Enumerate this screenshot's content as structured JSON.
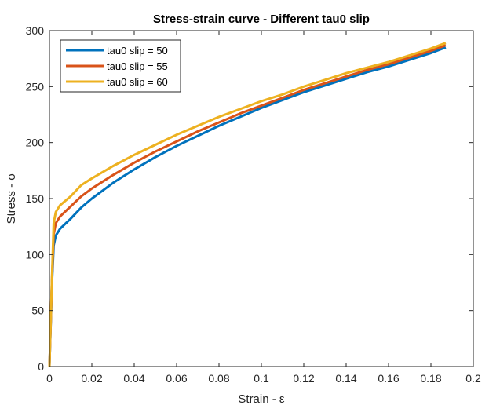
{
  "chart_data": {
    "type": "line",
    "title": "Stress-strain curve - Different tau0 slip",
    "xlabel": "Strain - ε",
    "ylabel": "Stress - σ",
    "xlim": [
      0,
      0.2
    ],
    "ylim": [
      0,
      300
    ],
    "xticks": [
      0,
      0.02,
      0.04,
      0.06,
      0.08,
      0.1,
      0.12,
      0.14,
      0.16,
      0.18,
      0.2
    ],
    "xtick_labels": [
      "0",
      "0.02",
      "0.04",
      "0.06",
      "0.08",
      "0.1",
      "0.12",
      "0.14",
      "0.16",
      "0.18",
      "0.2"
    ],
    "yticks": [
      0,
      50,
      100,
      150,
      200,
      250,
      300
    ],
    "ytick_labels": [
      "0",
      "50",
      "100",
      "150",
      "200",
      "250",
      "300"
    ],
    "grid": false,
    "legend_position": "top-left",
    "series": [
      {
        "name": "tau0 slip = 50",
        "color": "#0072BD",
        "x": [
          0,
          0.0012,
          0.002,
          0.003,
          0.005,
          0.01,
          0.015,
          0.02,
          0.03,
          0.04,
          0.05,
          0.06,
          0.07,
          0.08,
          0.09,
          0.1,
          0.11,
          0.12,
          0.13,
          0.14,
          0.15,
          0.16,
          0.17,
          0.18,
          0.187
        ],
        "y": [
          0,
          75,
          108,
          117,
          123,
          132,
          142,
          150,
          164,
          176,
          187,
          197,
          206,
          215,
          223,
          231,
          238,
          245,
          251,
          257,
          263,
          268,
          274,
          280,
          285
        ]
      },
      {
        "name": "tau0 slip = 55",
        "color": "#D95319",
        "x": [
          0,
          0.0012,
          0.002,
          0.003,
          0.005,
          0.01,
          0.015,
          0.02,
          0.03,
          0.04,
          0.05,
          0.06,
          0.07,
          0.08,
          0.09,
          0.1,
          0.11,
          0.12,
          0.13,
          0.14,
          0.15,
          0.16,
          0.17,
          0.18,
          0.187
        ],
        "y": [
          0,
          78,
          118,
          128,
          134,
          143,
          152,
          159,
          171,
          182,
          192,
          201,
          210,
          218,
          226,
          233,
          240,
          247,
          253,
          259,
          265,
          270,
          276,
          282,
          287
        ]
      },
      {
        "name": "tau0 slip = 60",
        "color": "#EDB120",
        "x": [
          0,
          0.0012,
          0.002,
          0.003,
          0.005,
          0.01,
          0.015,
          0.02,
          0.03,
          0.04,
          0.05,
          0.06,
          0.07,
          0.08,
          0.09,
          0.1,
          0.11,
          0.12,
          0.13,
          0.14,
          0.15,
          0.16,
          0.17,
          0.18,
          0.187
        ],
        "y": [
          0,
          80,
          128,
          138,
          144,
          152,
          162,
          168,
          179,
          189,
          198,
          207,
          215,
          223,
          230,
          237,
          243,
          250,
          256,
          262,
          267,
          272,
          278,
          284,
          289
        ]
      }
    ]
  }
}
